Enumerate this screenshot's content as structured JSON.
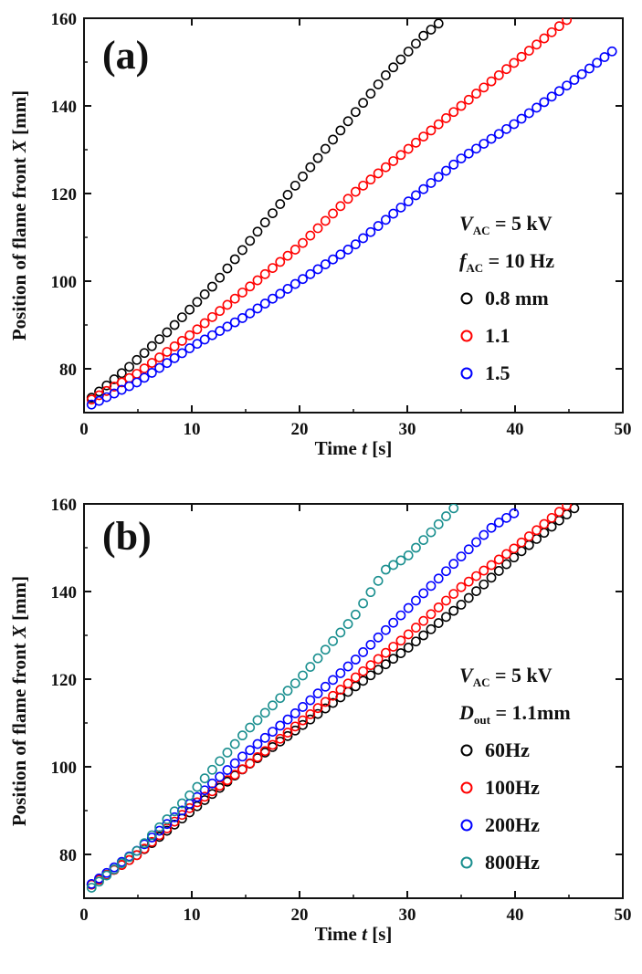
{
  "chart_data": [
    {
      "type": "scatter",
      "panel_label": "(a)",
      "xlabel_main": "Time ",
      "xlabel_var": "t",
      "xlabel_unit": " [s]",
      "ylabel_main": "Position of flame front ",
      "ylabel_var": "X",
      "ylabel_unit": " [mm]",
      "xlim": [
        0,
        50
      ],
      "ylim": [
        70,
        160
      ],
      "xticks": [
        0,
        10,
        20,
        30,
        40,
        50
      ],
      "yticks": [
        80,
        100,
        120,
        140,
        160
      ],
      "legend_header": [
        {
          "sym": "V",
          "sub": "AC",
          "rest": " = 5 kV"
        },
        {
          "sym": "f",
          "sub": "AC",
          "rest": " = 10 Hz"
        }
      ],
      "legend_position": "right",
      "series": [
        {
          "name": "0.8 mm",
          "color": "#000000",
          "x0": 0.7,
          "dx": 0.7,
          "points": [
            [
              0,
              72
            ],
            [
              4,
              80
            ],
            [
              8,
              89
            ],
            [
              12,
              99
            ],
            [
              16,
              111
            ],
            [
              20,
              123
            ],
            [
              24,
              135
            ],
            [
              28,
              147
            ],
            [
              31.5,
              156
            ],
            [
              33.5,
              160
            ]
          ]
        },
        {
          "name": "1.1",
          "color": "#ff0000",
          "x0": 0.7,
          "dx": 0.7,
          "points": [
            [
              0,
              72
            ],
            [
              5,
              79
            ],
            [
              10,
              88
            ],
            [
              15,
              98
            ],
            [
              20,
              108
            ],
            [
              25,
              120
            ],
            [
              30,
              130
            ],
            [
              35,
              140
            ],
            [
              40,
              150
            ],
            [
              45,
              160
            ]
          ]
        },
        {
          "name": "1.5",
          "color": "#0000ff",
          "x0": 0.7,
          "dx": 0.7,
          "points": [
            [
              0,
              71
            ],
            [
              5,
              77
            ],
            [
              10,
              85
            ],
            [
              15,
              92
            ],
            [
              20,
              100
            ],
            [
              25,
              108
            ],
            [
              30,
              118
            ],
            [
              35,
              128
            ],
            [
              40,
              136
            ],
            [
              45,
              145
            ],
            [
              49.3,
              153
            ]
          ]
        }
      ]
    },
    {
      "type": "scatter",
      "panel_label": "(b)",
      "xlabel_main": "Time ",
      "xlabel_var": "t",
      "xlabel_unit": " [s]",
      "ylabel_main": "Position of flame front ",
      "ylabel_var": "X",
      "ylabel_unit": " [mm]",
      "xlim": [
        0,
        50
      ],
      "ylim": [
        70,
        160
      ],
      "xticks": [
        0,
        10,
        20,
        30,
        40,
        50
      ],
      "yticks": [
        80,
        100,
        120,
        140,
        160
      ],
      "legend_header": [
        {
          "sym": "V",
          "sub": "AC",
          "rest": " = 5 kV"
        },
        {
          "sym": "D",
          "sub": "out",
          "rest": " = 1.1mm"
        }
      ],
      "legend_position": "right",
      "series": [
        {
          "name": "60Hz",
          "color": "#000000",
          "x0": 0.7,
          "dx": 0.7,
          "points": [
            [
              0,
              72
            ],
            [
              5,
              80
            ],
            [
              10,
              90
            ],
            [
              15,
              100
            ],
            [
              20,
              109
            ],
            [
              25,
              118
            ],
            [
              30,
              127
            ],
            [
              35,
              137
            ],
            [
              40,
              148
            ],
            [
              46,
              160
            ]
          ]
        },
        {
          "name": "100Hz",
          "color": "#ff0000",
          "x0": 0.7,
          "dx": 0.7,
          "points": [
            [
              0,
              72
            ],
            [
              5,
              80
            ],
            [
              10,
              91
            ],
            [
              15,
              100
            ],
            [
              20,
              110
            ],
            [
              25,
              120
            ],
            [
              30,
              130
            ],
            [
              35,
              141
            ],
            [
              40,
              150
            ],
            [
              45,
              160
            ]
          ]
        },
        {
          "name": "200Hz",
          "color": "#0000ff",
          "x0": 0.7,
          "dx": 0.7,
          "points": [
            [
              0,
              72
            ],
            [
              5,
              81
            ],
            [
              10,
              92
            ],
            [
              15,
              103
            ],
            [
              20,
              113
            ],
            [
              25,
              124
            ],
            [
              30,
              136
            ],
            [
              35,
              148
            ],
            [
              38,
              155
            ],
            [
              40,
              158
            ]
          ]
        },
        {
          "name": "800Hz",
          "color": "#1a8f8f",
          "x0": 0.7,
          "dx": 0.7,
          "points": [
            [
              0,
              71
            ],
            [
              5,
              81
            ],
            [
              10,
              94
            ],
            [
              15,
              108
            ],
            [
              20,
              120
            ],
            [
              25,
              134
            ],
            [
              28,
              145
            ],
            [
              30,
              148
            ],
            [
              32,
              153
            ],
            [
              34.3,
              159
            ]
          ]
        }
      ]
    }
  ]
}
